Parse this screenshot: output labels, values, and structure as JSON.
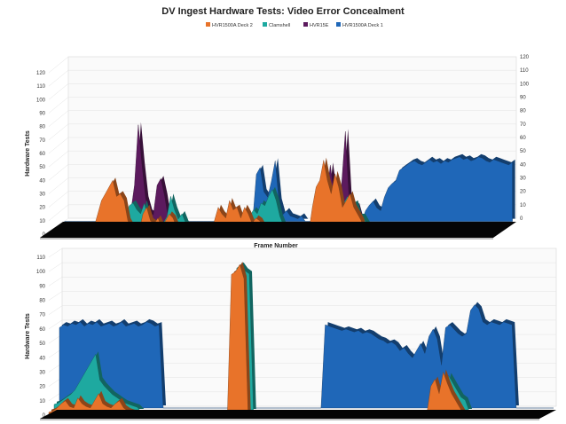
{
  "chart_data": [
    {
      "type": "area",
      "title": "DV Ingest Hardware Tests: Video Error Concealment",
      "xlabel": "Frame Number",
      "ylabel": "Hardware Tests",
      "ylim": [
        0,
        120
      ],
      "y_ticks": [
        0,
        10,
        20,
        30,
        40,
        50,
        60,
        70,
        80,
        90,
        100,
        110,
        120
      ],
      "right_ylim": [
        0,
        120
      ],
      "right_y_ticks": [
        0,
        10,
        20,
        30,
        40,
        50,
        60,
        70,
        80,
        90,
        100,
        110,
        120
      ],
      "grid": true,
      "legend_position": "top-center",
      "style": "3d-stacked-area",
      "x": [
        0,
        1,
        2,
        3,
        4,
        5,
        6,
        7,
        8,
        9,
        10,
        11,
        12,
        13,
        14,
        15,
        16,
        17,
        18,
        19,
        20,
        21,
        22,
        23,
        24,
        25,
        26,
        27,
        28,
        29,
        30,
        31,
        32,
        33,
        34,
        35,
        36,
        37,
        38,
        39,
        40,
        41,
        42,
        43,
        44,
        45,
        46,
        47,
        48,
        49,
        50,
        51,
        52,
        53,
        54,
        55,
        56,
        57,
        58,
        59,
        60,
        61,
        62,
        63,
        64,
        65,
        66,
        67,
        68,
        69,
        70,
        71,
        72,
        73,
        74,
        75,
        76,
        77,
        78,
        79,
        80,
        81,
        82,
        83,
        84,
        85,
        86,
        87,
        88,
        89,
        90,
        91,
        92,
        93,
        94,
        95,
        96,
        97,
        98,
        99,
        100,
        101,
        102,
        103,
        104,
        105,
        106,
        107,
        108,
        109,
        110,
        111,
        112,
        113,
        114,
        115,
        116,
        117,
        118,
        119
      ],
      "series": [
        {
          "name": "HVR1500A Deck 1",
          "color": "#1f67b8",
          "values": [
            0,
            0,
            0,
            0,
            0,
            0,
            0,
            0,
            0,
            0,
            0,
            0,
            0,
            0,
            0,
            0,
            0,
            0,
            0,
            0,
            0,
            0,
            0,
            0,
            0,
            5,
            4,
            0,
            0,
            0,
            0,
            0,
            0,
            0,
            0,
            0,
            0,
            0,
            0,
            0,
            0,
            0,
            0,
            0,
            4,
            3,
            2,
            0,
            0,
            0,
            0,
            35,
            40,
            22,
            18,
            30,
            45,
            15,
            5,
            8,
            4,
            3,
            2,
            4,
            0,
            0,
            0,
            0,
            0,
            0,
            0,
            0,
            0,
            0,
            0,
            0,
            0,
            0,
            0,
            0,
            8,
            12,
            15,
            10,
            8,
            18,
            25,
            28,
            30,
            38,
            40,
            42,
            44,
            45,
            43,
            42,
            44,
            46,
            44,
            45,
            43,
            45,
            44,
            46,
            47,
            48,
            46,
            47,
            45,
            46,
            48,
            47,
            45,
            44,
            46,
            45,
            44,
            43,
            42,
            44
          ]
        },
        {
          "name": "HVR15E",
          "color": "#5c1a5e",
          "values": [
            0,
            0,
            0,
            0,
            0,
            0,
            0,
            0,
            0,
            0,
            0,
            0,
            0,
            0,
            0,
            0,
            0,
            0,
            0,
            10,
            30,
            75,
            45,
            20,
            10,
            8,
            30,
            35,
            22,
            5,
            0,
            0,
            0,
            0,
            0,
            0,
            0,
            0,
            0,
            0,
            0,
            0,
            0,
            0,
            0,
            0,
            0,
            0,
            0,
            0,
            0,
            0,
            0,
            0,
            0,
            0,
            0,
            0,
            0,
            0,
            0,
            0,
            0,
            0,
            0,
            0,
            0,
            0,
            0,
            0,
            5,
            20,
            45,
            25,
            8,
            30,
            70,
            20,
            10,
            15,
            5,
            0,
            0,
            0,
            0,
            0,
            0,
            0,
            0,
            0,
            0,
            0,
            0,
            0,
            0,
            0,
            0,
            0,
            0,
            0,
            0,
            0,
            0,
            0,
            0,
            0,
            0,
            0,
            0,
            0,
            0,
            0,
            0,
            0,
            0,
            0,
            0,
            0,
            0,
            0
          ]
        },
        {
          "name": "Clamshell",
          "color": "#1ea9a0",
          "values": [
            0,
            0,
            0,
            0,
            0,
            0,
            0,
            0,
            0,
            0,
            0,
            0,
            0,
            0,
            0,
            0,
            0,
            0,
            5,
            10,
            18,
            20,
            15,
            12,
            20,
            8,
            6,
            5,
            4,
            5,
            10,
            25,
            15,
            8,
            12,
            5,
            0,
            0,
            0,
            0,
            0,
            0,
            0,
            0,
            0,
            0,
            0,
            0,
            0,
            0,
            0,
            8,
            10,
            15,
            12,
            20,
            18,
            25,
            30,
            22,
            10,
            3,
            2,
            0,
            0,
            0,
            0,
            0,
            0,
            0,
            0,
            5,
            10,
            8,
            12,
            15,
            10,
            20,
            25,
            18,
            20,
            10,
            10,
            5,
            0,
            0,
            0,
            0,
            0,
            0,
            0,
            0,
            0,
            0,
            0,
            0,
            0,
            0,
            0,
            0,
            0,
            0,
            0,
            0,
            0,
            0,
            0,
            0,
            0,
            0,
            0,
            0,
            0,
            0,
            0,
            0,
            0,
            0,
            0,
            0
          ]
        },
        {
          "name": "HVR1500A Deck 2",
          "color": "#e8732a",
          "values": [
            0,
            0,
            0,
            0,
            0,
            0,
            0,
            0,
            0,
            0,
            0,
            0,
            5,
            15,
            25,
            30,
            35,
            40,
            28,
            30,
            25,
            10,
            5,
            3,
            2,
            15,
            20,
            10,
            8,
            12,
            5,
            10,
            15,
            12,
            5,
            3,
            0,
            0,
            0,
            0,
            0,
            0,
            0,
            0,
            10,
            20,
            15,
            12,
            25,
            18,
            20,
            12,
            20,
            15,
            8,
            12,
            10,
            5,
            5,
            5,
            0,
            0,
            0,
            0,
            0,
            0,
            0,
            0,
            0,
            0,
            20,
            35,
            40,
            55,
            40,
            30,
            45,
            35,
            20,
            25,
            30,
            20,
            15,
            10,
            0,
            0,
            0,
            0,
            0,
            0,
            0,
            0,
            0,
            0,
            0,
            0,
            0,
            0,
            0,
            0,
            0,
            0,
            0,
            0,
            0,
            0,
            0,
            0,
            0,
            0,
            0,
            0,
            0,
            0,
            0,
            0,
            0,
            0,
            0,
            0
          ]
        }
      ]
    },
    {
      "type": "area",
      "title": "",
      "xlabel": "",
      "ylabel": "Hardware Tests",
      "ylim": [
        0,
        110
      ],
      "y_ticks": [
        0,
        10,
        20,
        30,
        40,
        50,
        60,
        70,
        80,
        90,
        100,
        110
      ],
      "grid": true,
      "style": "3d-stacked-area",
      "x": [
        0,
        1,
        2,
        3,
        4,
        5,
        6,
        7,
        8,
        9,
        10,
        11,
        12,
        13,
        14,
        15,
        16,
        17,
        18,
        19,
        20,
        21,
        22,
        23,
        24,
        25,
        26,
        27,
        28,
        29,
        30,
        31,
        32,
        33,
        34,
        35,
        36,
        37,
        38,
        39,
        40,
        41,
        42,
        43,
        44,
        45,
        46,
        47,
        48,
        49,
        50,
        51,
        52,
        53,
        54,
        55,
        56,
        57,
        58,
        59,
        60,
        61,
        62,
        63,
        64,
        65,
        66,
        67,
        68,
        69,
        70,
        71,
        72,
        73,
        74,
        75,
        76,
        77,
        78,
        79,
        80,
        81,
        82,
        83,
        84,
        85,
        86,
        87,
        88,
        89,
        90,
        91,
        92,
        93,
        94,
        95,
        96,
        97,
        98,
        99,
        100,
        101,
        102,
        103,
        104,
        105,
        106,
        107,
        108,
        109,
        110,
        111,
        112,
        113,
        114,
        115,
        116,
        117,
        118,
        119
      ],
      "series": [
        {
          "name": "HVR1500A Deck 1",
          "color": "#1f67b8",
          "values": [
            56,
            58,
            57,
            59,
            58,
            60,
            57,
            59,
            58,
            60,
            57,
            58,
            59,
            57,
            58,
            60,
            57,
            58,
            59,
            57,
            58,
            60,
            59,
            57,
            58,
            0,
            0,
            0,
            0,
            0,
            0,
            0,
            0,
            0,
            0,
            0,
            0,
            0,
            0,
            0,
            0,
            0,
            0,
            0,
            0,
            0,
            0,
            0,
            0,
            0,
            0,
            0,
            0,
            0,
            0,
            0,
            0,
            0,
            0,
            0,
            0,
            0,
            0,
            0,
            58,
            57,
            56,
            55,
            54,
            55,
            54,
            53,
            54,
            52,
            53,
            52,
            50,
            48,
            47,
            45,
            46,
            44,
            40,
            42,
            38,
            35,
            40,
            45,
            38,
            50,
            55,
            48,
            30,
            56,
            58,
            55,
            52,
            50,
            52,
            68,
            72,
            69,
            60,
            58,
            60,
            59,
            58,
            60,
            59,
            58,
            0,
            0,
            0,
            0,
            0,
            0,
            0,
            0,
            0,
            0
          ]
        },
        {
          "name": "Clamshell",
          "color": "#1ea9a0",
          "values": [
            5,
            6,
            8,
            10,
            12,
            15,
            20,
            25,
            30,
            35,
            40,
            22,
            18,
            15,
            12,
            10,
            8,
            6,
            5,
            4,
            3,
            0,
            0,
            0,
            0,
            0,
            0,
            0,
            0,
            0,
            0,
            0,
            0,
            0,
            0,
            0,
            0,
            0,
            0,
            0,
            0,
            0,
            0,
            0,
            100,
            102,
            98,
            96,
            0,
            0,
            0,
            0,
            0,
            0,
            0,
            0,
            0,
            0,
            0,
            0,
            0,
            0,
            0,
            0,
            0,
            0,
            0,
            0,
            0,
            0,
            0,
            0,
            0,
            0,
            0,
            0,
            0,
            0,
            0,
            0,
            0,
            0,
            0,
            0,
            0,
            0,
            0,
            0,
            0,
            0,
            0,
            0,
            8,
            10,
            15,
            25,
            20,
            15,
            10,
            8,
            0,
            0,
            0,
            0,
            0,
            0,
            0,
            0,
            0,
            0,
            0,
            0,
            0,
            0,
            0,
            0,
            0,
            0,
            0,
            0
          ]
        },
        {
          "name": "HVR1500A Deck 2",
          "color": "#e8732a",
          "values": [
            2,
            3,
            5,
            8,
            10,
            6,
            5,
            12,
            8,
            6,
            5,
            10,
            15,
            8,
            6,
            5,
            8,
            10,
            5,
            3,
            2,
            0,
            0,
            0,
            0,
            0,
            0,
            0,
            0,
            0,
            0,
            0,
            0,
            0,
            0,
            0,
            0,
            0,
            0,
            0,
            0,
            0,
            0,
            0,
            98,
            100,
            105,
            95,
            0,
            0,
            0,
            0,
            0,
            0,
            0,
            0,
            0,
            0,
            0,
            0,
            0,
            0,
            0,
            0,
            0,
            0,
            0,
            0,
            0,
            0,
            0,
            0,
            0,
            0,
            0,
            0,
            0,
            0,
            0,
            0,
            0,
            0,
            0,
            0,
            0,
            0,
            0,
            0,
            0,
            0,
            0,
            0,
            20,
            25,
            15,
            30,
            22,
            15,
            10,
            5,
            0,
            0,
            0,
            0,
            0,
            0,
            0,
            0,
            0,
            0,
            0,
            0,
            0,
            0,
            0,
            0,
            0,
            0,
            0,
            0
          ]
        }
      ]
    }
  ]
}
